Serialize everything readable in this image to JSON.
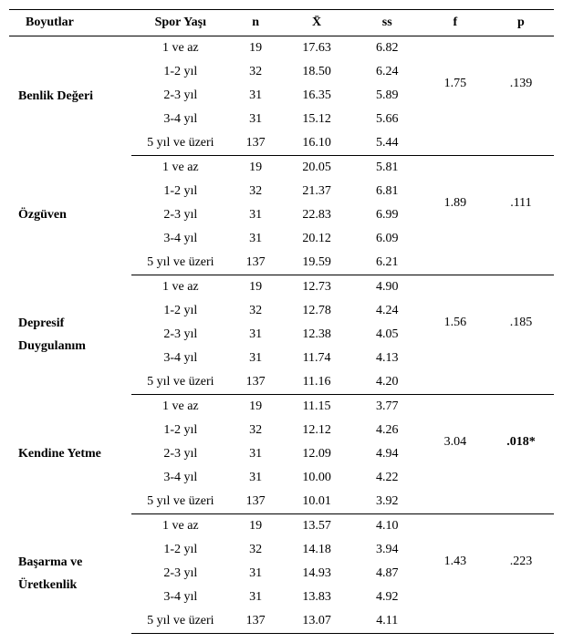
{
  "headers": {
    "dim": "Boyutlar",
    "age": "Spor Yaşı",
    "n": "n",
    "mean": "X̄",
    "sd": "ss",
    "f": "f",
    "p": "p"
  },
  "groups": [
    {
      "label": "Benlik Değeri",
      "f": "1.75",
      "p": ".139",
      "p_bold": false,
      "rows": [
        {
          "age": "1 ve az",
          "n": "19",
          "mean": "17.63",
          "sd": "6.82"
        },
        {
          "age": "1-2 yıl",
          "n": "32",
          "mean": "18.50",
          "sd": "6.24"
        },
        {
          "age": "2-3 yıl",
          "n": "31",
          "mean": "16.35",
          "sd": "5.89"
        },
        {
          "age": "3-4 yıl",
          "n": "31",
          "mean": "15.12",
          "sd": "5.66"
        },
        {
          "age": "5 yıl ve üzeri",
          "n": "137",
          "mean": "16.10",
          "sd": "5.44"
        }
      ]
    },
    {
      "label": "Özgüven",
      "f": "1.89",
      "p": ".111",
      "p_bold": false,
      "rows": [
        {
          "age": "1 ve az",
          "n": "19",
          "mean": "20.05",
          "sd": "5.81"
        },
        {
          "age": "1-2 yıl",
          "n": "32",
          "mean": "21.37",
          "sd": "6.81"
        },
        {
          "age": "2-3 yıl",
          "n": "31",
          "mean": "22.83",
          "sd": "6.99"
        },
        {
          "age": "3-4 yıl",
          "n": "31",
          "mean": "20.12",
          "sd": "6.09"
        },
        {
          "age": "5 yıl ve üzeri",
          "n": "137",
          "mean": "19.59",
          "sd": "6.21"
        }
      ]
    },
    {
      "label": "Depresif\nDuygulanım",
      "f": "1.56",
      "p": ".185",
      "p_bold": false,
      "rows": [
        {
          "age": "1 ve az",
          "n": "19",
          "mean": "12.73",
          "sd": "4.90"
        },
        {
          "age": "1-2 yıl",
          "n": "32",
          "mean": "12.78",
          "sd": "4.24"
        },
        {
          "age": "2-3 yıl",
          "n": "31",
          "mean": "12.38",
          "sd": "4.05"
        },
        {
          "age": "3-4 yıl",
          "n": "31",
          "mean": "11.74",
          "sd": "4.13"
        },
        {
          "age": "5 yıl ve üzeri",
          "n": "137",
          "mean": "11.16",
          "sd": "4.20"
        }
      ]
    },
    {
      "label": "Kendine Yetme",
      "f": "3.04",
      "p": ".018*",
      "p_bold": true,
      "rows": [
        {
          "age": "1 ve az",
          "n": "19",
          "mean": "11.15",
          "sd": "3.77"
        },
        {
          "age": "1-2 yıl",
          "n": "32",
          "mean": "12.12",
          "sd": "4.26"
        },
        {
          "age": "2-3 yıl",
          "n": "31",
          "mean": "12.09",
          "sd": "4.94"
        },
        {
          "age": "3-4 yıl",
          "n": "31",
          "mean": "10.00",
          "sd": "4.22"
        },
        {
          "age": "5 yıl ve üzeri",
          "n": "137",
          "mean": "10.01",
          "sd": "3.92"
        }
      ]
    },
    {
      "label": "Başarma ve\nÜretkenlik",
      "f": "1.43",
      "p": ".223",
      "p_bold": false,
      "rows": [
        {
          "age": "1 ve az",
          "n": "19",
          "mean": "13.57",
          "sd": "4.10"
        },
        {
          "age": "1-2 yıl",
          "n": "32",
          "mean": "14.18",
          "sd": "3.94"
        },
        {
          "age": "2-3 yıl",
          "n": "31",
          "mean": "14.93",
          "sd": "4.87"
        },
        {
          "age": "3-4 yıl",
          "n": "31",
          "mean": "13.83",
          "sd": "4.92"
        },
        {
          "age": "5 yıl ve üzeri",
          "n": "137",
          "mean": "13.07",
          "sd": "4.11"
        }
      ]
    }
  ],
  "col_widths": {
    "dim": 130,
    "age": 105,
    "n": 55,
    "mean": 75,
    "sd": 75,
    "f": 70,
    "p": 70
  }
}
